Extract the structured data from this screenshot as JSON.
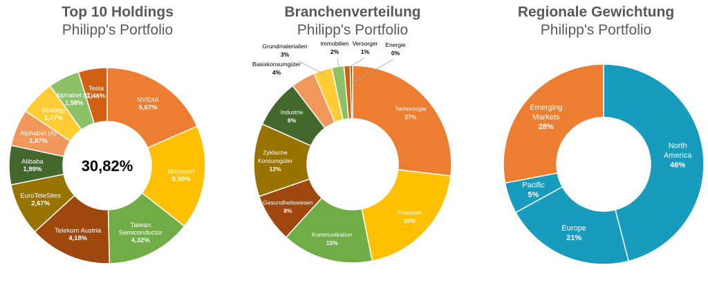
{
  "chart_data": [
    {
      "type": "pie",
      "variant": "donut",
      "title": "Top 10 Holdings",
      "subtitle": "Philipp's Portfolio",
      "center_label": "30,82%",
      "categories": [
        "NVIDIA",
        "Microsoft",
        "Taiwan Semiconductor",
        "Telekom Austria",
        "EuroTeleSites",
        "Alibaba",
        "Alphabet (A)",
        "Strategy",
        "Alphabet (C)",
        "Tesla"
      ],
      "label_lines": [
        [
          "NVIDIA"
        ],
        [
          "Microsoft"
        ],
        [
          "Taiwan",
          "Semiconductor"
        ],
        [
          "Telekom Austria"
        ],
        [
          "EuroTeleSites"
        ],
        [
          "Alibaba"
        ],
        [
          "Alphabet (A)"
        ],
        [
          "Strategy"
        ],
        [
          "Alphabet (C)"
        ],
        [
          "Tesla"
        ]
      ],
      "value_labels": [
        "5,67%",
        "5,30%",
        "4,32%",
        "4,18%",
        "2,67%",
        "1,99%",
        "1,87%",
        "1,77%",
        "1,58%",
        "1,46%"
      ],
      "values": [
        5.67,
        5.3,
        4.32,
        4.18,
        2.67,
        1.99,
        1.87,
        1.77,
        1.58,
        1.46
      ],
      "colors": [
        "#ED7D31",
        "#FFC000",
        "#70AD47",
        "#9E480E",
        "#997300",
        "#43682B",
        "#F1975A",
        "#FFCD33",
        "#8CC168",
        "#D26012"
      ]
    },
    {
      "type": "pie",
      "variant": "donut",
      "title": "Branchenverteilung",
      "subtitle": "Philipp's Portfolio",
      "categories": [
        "Technologie",
        "Finanzen",
        "Kommunikation",
        "Gesundheitswesen",
        "Zyklische Konsumgüter",
        "Industrie",
        "Basiskonsumgüter",
        "Grundmaterialien",
        "Immobilien",
        "Versorger",
        "Energie"
      ],
      "label_lines": [
        [
          "Technologie"
        ],
        [
          "Finanzen"
        ],
        [
          "Kommunikation"
        ],
        [
          "Gesundheitswesen"
        ],
        [
          "Zyklische",
          "Konsumgüter"
        ],
        [
          "Industrie"
        ],
        [
          "Basiskonsumgüter"
        ],
        [
          "Grundmaterialien"
        ],
        [
          "Immobilien"
        ],
        [
          "Versorger"
        ],
        [
          "Energie"
        ]
      ],
      "value_labels": [
        "27%",
        "20%",
        "15%",
        "8%",
        "12%",
        "8%",
        "4%",
        "3%",
        "2%",
        "1%",
        "0%"
      ],
      "values": [
        27,
        20,
        15,
        8,
        12,
        8,
        4,
        3,
        2,
        1,
        0.4
      ],
      "colors": [
        "#ED7D31",
        "#FFC000",
        "#70AD47",
        "#9E480E",
        "#997300",
        "#43682B",
        "#F1975A",
        "#FFCD33",
        "#8CC168",
        "#D26012",
        "#7F6000"
      ]
    },
    {
      "type": "pie",
      "variant": "donut",
      "title": "Regionale Gewichtung",
      "subtitle": "Philipp's Portfolio",
      "categories": [
        "North America",
        "Europe",
        "Pacific",
        "Emerging Markets"
      ],
      "label_lines": [
        [
          "North",
          "America"
        ],
        [
          "Europe"
        ],
        [
          "Pacific"
        ],
        [
          "Emerging",
          "Markets"
        ]
      ],
      "value_labels": [
        "46%",
        "21%",
        "5%",
        "28%"
      ],
      "values": [
        46,
        21,
        5,
        28
      ],
      "colors": [
        "#179CBD",
        "#179CBD",
        "#179CBD",
        "#ED7D31"
      ]
    }
  ]
}
